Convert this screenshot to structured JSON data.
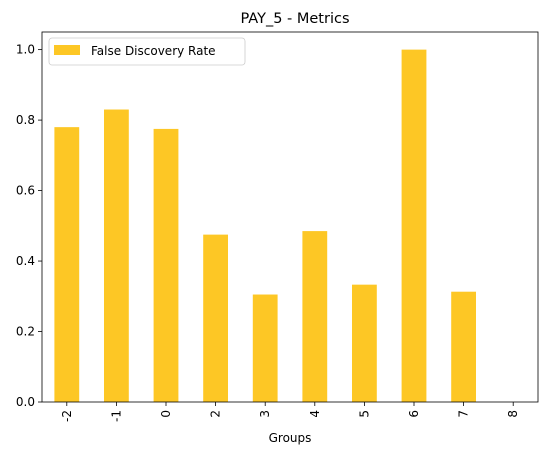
{
  "chart_data": {
    "type": "bar",
    "title": "PAY_5 - Metrics",
    "xlabel": "Groups",
    "ylabel": "",
    "categories": [
      "-2",
      "-1",
      "0",
      "2",
      "3",
      "4",
      "5",
      "6",
      "7",
      "8"
    ],
    "series": [
      {
        "name": "False Discovery Rate",
        "color": "#fdc725",
        "values": [
          0.78,
          0.83,
          0.775,
          0.475,
          0.305,
          0.485,
          0.333,
          1.0,
          0.313,
          0.0
        ]
      }
    ],
    "ylim": [
      0,
      1.05
    ],
    "yticks": [
      "0.0",
      "0.2",
      "0.4",
      "0.6",
      "0.8",
      "1.0"
    ],
    "grid": false,
    "legend_position": "top-left"
  }
}
